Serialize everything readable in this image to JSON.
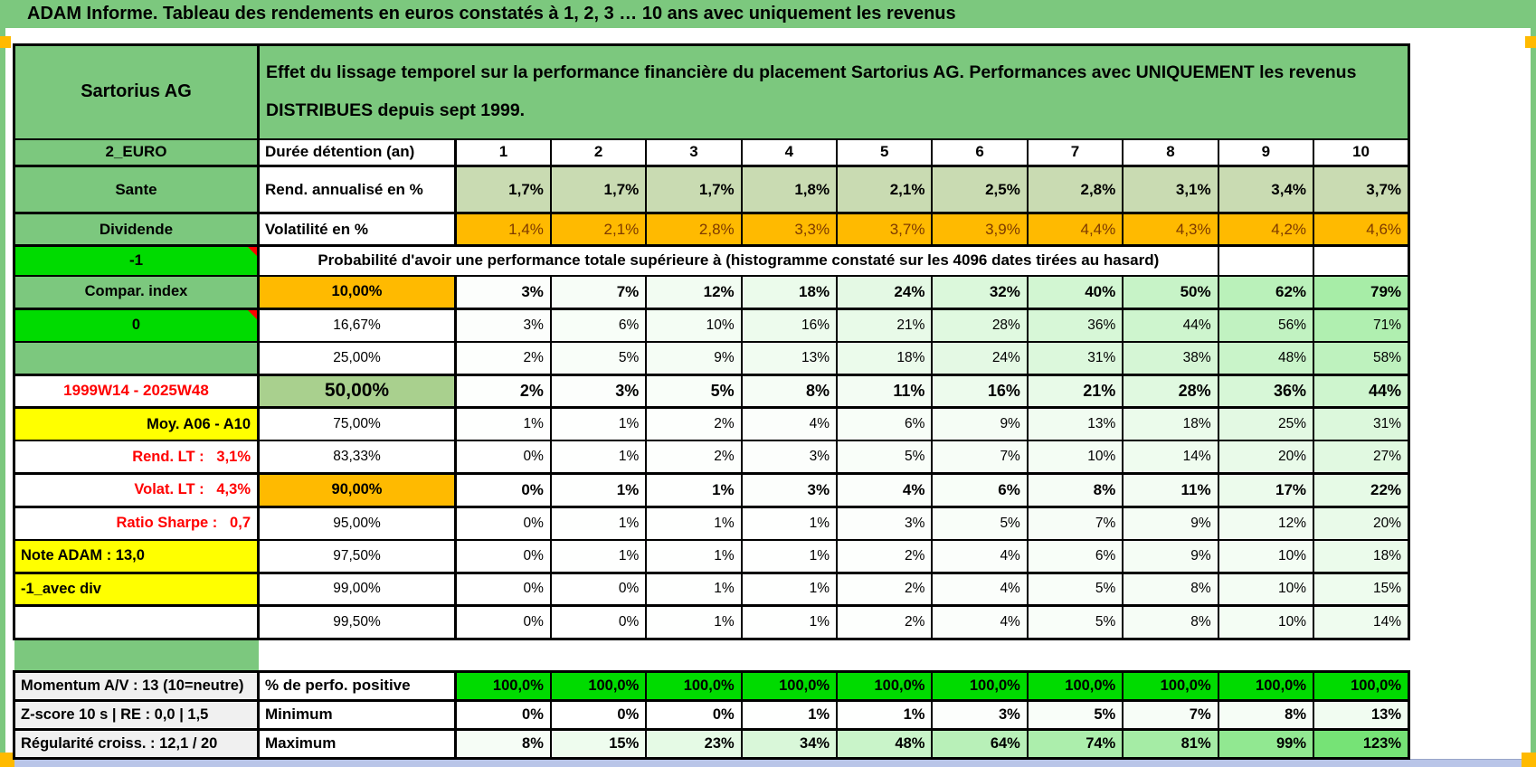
{
  "title": "ADAM Informe. Tableau des rendements en euros constatés à 1, 2, 3 … 10 ans avec uniquement les revenus",
  "header": {
    "instrument": "Sartorius AG",
    "description": "Effet du lissage temporel sur la performance financière du placement Sartorius AG. Performances avec UNIQUEMENT les revenus DISTRIBUES depuis sept 1999."
  },
  "top_section": {
    "code": "2_EURO",
    "sector": "Sante",
    "type": "Dividende",
    "duration_label": "Durée détention (an)",
    "durations": [
      "1",
      "2",
      "3",
      "4",
      "5",
      "6",
      "7",
      "8",
      "9",
      "10"
    ],
    "annualized_label": "Rend. annualisé en %",
    "annualized": [
      "1,7%",
      "1,7%",
      "1,7%",
      "1,8%",
      "2,1%",
      "2,5%",
      "2,8%",
      "3,1%",
      "3,4%",
      "3,7%"
    ],
    "volatility_label": "Volatilité en %",
    "volatility": [
      "1,4%",
      "2,1%",
      "2,8%",
      "3,3%",
      "3,7%",
      "3,9%",
      "4,4%",
      "4,3%",
      "4,2%",
      "4,6%"
    ]
  },
  "probability": {
    "left_cell": "-1",
    "header": "Probabilité d'avoir une performance totale supérieure à (histogramme constaté sur les 4096 dates tirées au hasard)",
    "rows": [
      {
        "left": "Compar. index",
        "threshold": "10,00%",
        "values": [
          3,
          7,
          12,
          18,
          24,
          32,
          40,
          50,
          62,
          79
        ]
      },
      {
        "left": "0",
        "threshold": "16,67%",
        "values": [
          3,
          6,
          10,
          16,
          21,
          28,
          36,
          44,
          56,
          71
        ]
      },
      {
        "left": "",
        "threshold": "25,00%",
        "values": [
          2,
          5,
          9,
          13,
          18,
          24,
          31,
          38,
          48,
          58
        ]
      },
      {
        "left": "1999W14 - 2025W48",
        "threshold": "50,00%",
        "values": [
          2,
          3,
          5,
          8,
          11,
          16,
          21,
          28,
          36,
          44
        ]
      },
      {
        "left": "Moy. A06 - A10",
        "threshold": "75,00%",
        "values": [
          1,
          1,
          2,
          4,
          6,
          9,
          13,
          18,
          25,
          31
        ]
      },
      {
        "left": "Rend. LT :   3,1%",
        "threshold": "83,33%",
        "values": [
          0,
          1,
          2,
          3,
          5,
          7,
          10,
          14,
          20,
          27
        ]
      },
      {
        "left": "Volat. LT :   4,3%",
        "threshold": "90,00%",
        "values": [
          0,
          1,
          1,
          3,
          4,
          6,
          8,
          11,
          17,
          22
        ]
      },
      {
        "left": "Ratio Sharpe :   0,7",
        "threshold": "95,00%",
        "values": [
          0,
          1,
          1,
          1,
          3,
          5,
          7,
          9,
          12,
          20
        ]
      },
      {
        "left": "Note ADAM : 13,0",
        "threshold": "97,50%",
        "values": [
          0,
          1,
          1,
          1,
          2,
          4,
          6,
          9,
          10,
          18
        ]
      },
      {
        "left": "-1_avec div",
        "threshold": "99,00%",
        "values": [
          0,
          0,
          1,
          1,
          2,
          4,
          5,
          8,
          10,
          15
        ]
      },
      {
        "left": "",
        "threshold": "99,50%",
        "values": [
          0,
          0,
          1,
          1,
          2,
          4,
          5,
          8,
          10,
          14
        ]
      }
    ]
  },
  "footer": {
    "rows": [
      {
        "left": "Momentum A/V : 13 (10=neutre)",
        "label": "% de perfo. positive",
        "values": [
          "100,0%",
          "100,0%",
          "100,0%",
          "100,0%",
          "100,0%",
          "100,0%",
          "100,0%",
          "100,0%",
          "100,0%",
          "100,0%"
        ]
      },
      {
        "left": "Z-score 10 s | RE : 0,0 | 1,5",
        "label": "Minimum",
        "values": [
          0,
          0,
          0,
          1,
          1,
          3,
          5,
          7,
          8,
          13
        ]
      },
      {
        "left": "Régularité croiss. : 12,1 / 20",
        "label": "Maximum",
        "values": [
          8,
          15,
          23,
          34,
          48,
          64,
          74,
          81,
          99,
          123
        ]
      }
    ]
  },
  "colors": {
    "frame_green": "#7CC87E",
    "bright_green": "#00DB00",
    "orange": "#FFBA00",
    "yellow": "#FFFF00",
    "sage_green": "#C9DBB2",
    "median_green": "#A9D08E",
    "label_gray": "#F0F0F0",
    "page_edge_blue": "#B9C5E8"
  }
}
